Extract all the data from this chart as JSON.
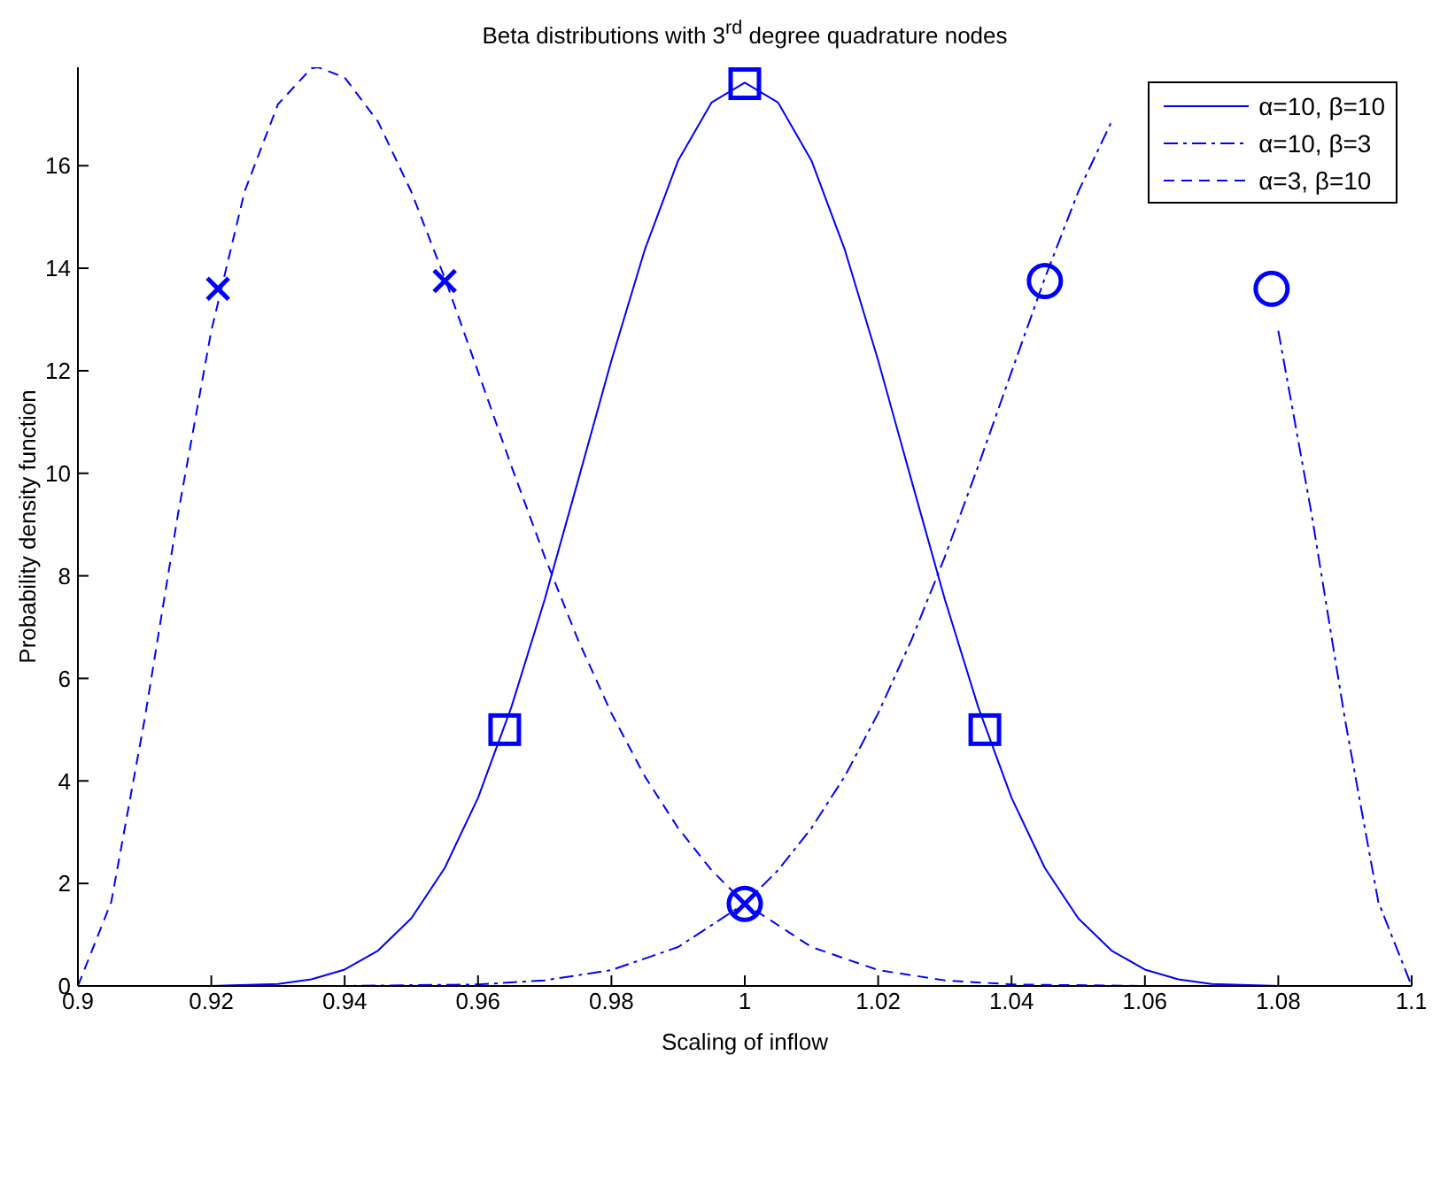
{
  "chart_data": {
    "type": "line",
    "title": "Beta distributions with 3$^{rd}$ degree quadrature nodes",
    "xlabel": "Scaling of inflow",
    "ylabel": "Probability density function",
    "xlim": [
      0.9,
      1.1
    ],
    "xticks": [
      0.9,
      0.92,
      0.94,
      0.96,
      0.98,
      1,
      1.02,
      1.04,
      1.06,
      1.08,
      1.1
    ],
    "ylim": [
      0,
      17.92
    ],
    "yticks": [
      0,
      2,
      4,
      6,
      8,
      10,
      12,
      14,
      16
    ],
    "grid": false,
    "legend": "top right",
    "series": [
      {
        "name": "α=10, β=10",
        "color": "#0000ff",
        "line_style": "solid",
        "x": [
          0.9,
          0.92,
          0.93,
          0.935,
          0.94,
          0.945,
          0.95,
          0.955,
          0.96,
          0.965,
          0.97,
          0.975,
          0.98,
          0.985,
          0.99,
          0.995,
          1,
          1.005,
          1.01,
          1.015,
          1.02,
          1.025,
          1.03,
          1.035,
          1.04,
          1.045,
          1.05,
          1.055,
          1.06,
          1.065,
          1.07,
          1.08,
          1.1
        ],
        "values": [
          0,
          0,
          0.04,
          0.13,
          0.32,
          0.69,
          1.32,
          2.3,
          3.67,
          5.44,
          7.54,
          9.86,
          12.2,
          14.36,
          16.1,
          17.23,
          17.62,
          17.23,
          16.1,
          14.36,
          12.2,
          9.86,
          7.54,
          5.44,
          3.67,
          2.3,
          1.32,
          0.69,
          0.32,
          0.13,
          0.04,
          0,
          0
        ]
      },
      {
        "name": "α=10, β=3",
        "color": "#0000ff",
        "line_style": "dotted",
        "x": [
          0.9,
          0.94,
          0.96,
          0.97,
          0.98,
          0.99,
          1,
          1.005,
          1.01,
          1.015,
          1.02,
          1.025,
          1.03,
          1.035,
          1.04,
          1.045,
          1.05,
          1.055,
          1.06,
          1.064,
          1.065,
          1.07,
          1.075,
          1.08,
          1.085,
          1.09,
          1.095,
          1.1
        ],
        "values": [
          0,
          0,
          0.03,
          0.11,
          0.31,
          0.76,
          1.61,
          2.26,
          3.08,
          4.09,
          5.32,
          6.75,
          8.37,
          10.14,
          11.98,
          13.81,
          15.49,
          16.86,
          null,
          null,
          null,
          null,
          null,
          12.78,
          9.2,
          5.2,
          1.64,
          0
        ]
      },
      {
        "name": "α=3, β=10",
        "color": "#0000ff",
        "line_style": "dashed",
        "x": [
          0.9,
          0.905,
          0.91,
          0.915,
          0.92,
          0.925,
          0.93,
          0.935,
          0.936,
          0.94,
          0.945,
          0.95,
          0.955,
          0.96,
          0.965,
          0.97,
          0.975,
          0.98,
          0.985,
          0.99,
          0.995,
          1,
          1.01,
          1.02,
          1.03,
          1.04,
          1.06,
          1.1
        ],
        "values": [
          0,
          1.64,
          5.2,
          9.2,
          12.78,
          15.5,
          17.2,
          17.9,
          17.92,
          17.72,
          16.86,
          15.49,
          13.81,
          11.98,
          10.14,
          8.37,
          6.75,
          5.32,
          4.09,
          3.08,
          2.26,
          1.61,
          0.76,
          0.31,
          0.11,
          0.03,
          0,
          0
        ]
      },
      {
        "type": "scatter",
        "color": "#0000ff",
        "marker": "square",
        "x": [
          0.964,
          1,
          1.036
        ],
        "values": [
          5,
          17.6,
          5
        ]
      },
      {
        "type": "scatter",
        "color": "#0000ff",
        "marker": "circle",
        "x": [
          1,
          1.045,
          1.079
        ],
        "values": [
          1.6,
          13.75,
          13.6
        ]
      },
      {
        "type": "scatter",
        "color": "#0000ff",
        "marker": "cross",
        "x": [
          0.921,
          0.955,
          1
        ],
        "values": [
          13.6,
          13.75,
          1.6
        ]
      }
    ]
  }
}
